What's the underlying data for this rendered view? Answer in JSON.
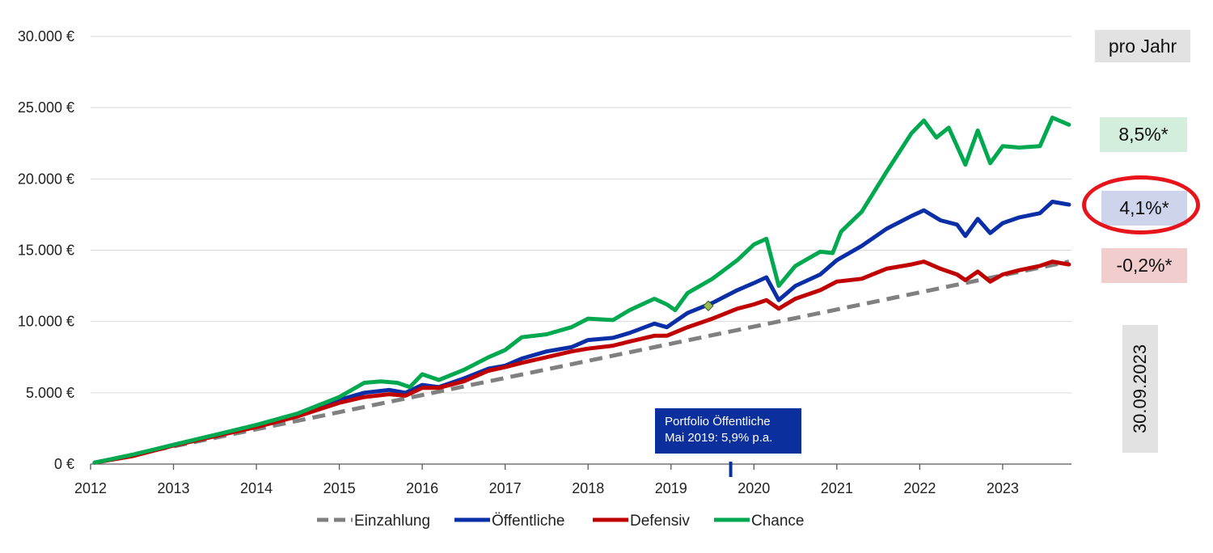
{
  "chart_data": {
    "type": "line",
    "title": "",
    "xlabel": "",
    "ylabel": "",
    "ylim": [
      0,
      30000
    ],
    "xlim": [
      2012,
      2023.83
    ],
    "y_ticks": [
      0,
      5000,
      10000,
      15000,
      20000,
      25000,
      30000
    ],
    "y_tick_labels": [
      "0 €",
      "5.000 €",
      "10.000 €",
      "15.000 €",
      "20.000 €",
      "25.000 €",
      "30.000 €"
    ],
    "x_ticks": [
      2012,
      2013,
      2014,
      2015,
      2016,
      2017,
      2018,
      2019,
      2020,
      2021,
      2022,
      2023
    ],
    "x_tick_labels": [
      "2012",
      "2013",
      "2014",
      "2015",
      "2016",
      "2017",
      "2018",
      "2019",
      "2020",
      "2021",
      "2022",
      "2023"
    ],
    "grid": "horizontal",
    "legend_position": "bottom",
    "series": [
      {
        "name": "Einzahlung",
        "color": "#808080",
        "style": "dashed",
        "points": [
          [
            2012.05,
            100
          ],
          [
            2023.8,
            14200
          ]
        ]
      },
      {
        "name": "Öffentliche",
        "color": "#0a2ea6",
        "style": "solid",
        "points": [
          [
            2012.05,
            100
          ],
          [
            2012.5,
            600
          ],
          [
            2013,
            1350
          ],
          [
            2013.5,
            2000
          ],
          [
            2014,
            2700
          ],
          [
            2014.5,
            3400
          ],
          [
            2015,
            4500
          ],
          [
            2015.3,
            5000
          ],
          [
            2015.6,
            5200
          ],
          [
            2015.8,
            5000
          ],
          [
            2016,
            5550
          ],
          [
            2016.2,
            5400
          ],
          [
            2016.5,
            6000
          ],
          [
            2016.8,
            6700
          ],
          [
            2017,
            6900
          ],
          [
            2017.2,
            7400
          ],
          [
            2017.5,
            7900
          ],
          [
            2017.8,
            8200
          ],
          [
            2018,
            8700
          ],
          [
            2018.3,
            8850
          ],
          [
            2018.5,
            9200
          ],
          [
            2018.8,
            9850
          ],
          [
            2018.95,
            9600
          ],
          [
            2019.2,
            10600
          ],
          [
            2019.5,
            11300
          ],
          [
            2019.8,
            12200
          ],
          [
            2020,
            12700
          ],
          [
            2020.15,
            13100
          ],
          [
            2020.3,
            11500
          ],
          [
            2020.5,
            12500
          ],
          [
            2020.8,
            13300
          ],
          [
            2021,
            14300
          ],
          [
            2021.3,
            15300
          ],
          [
            2021.6,
            16500
          ],
          [
            2021.9,
            17400
          ],
          [
            2022.05,
            17800
          ],
          [
            2022.25,
            17100
          ],
          [
            2022.45,
            16800
          ],
          [
            2022.55,
            16000
          ],
          [
            2022.7,
            17200
          ],
          [
            2022.85,
            16200
          ],
          [
            2023,
            16900
          ],
          [
            2023.2,
            17300
          ],
          [
            2023.45,
            17600
          ],
          [
            2023.6,
            18400
          ],
          [
            2023.8,
            18200
          ]
        ]
      },
      {
        "name": "Defensiv",
        "color": "#c00000",
        "style": "solid",
        "points": [
          [
            2012.05,
            100
          ],
          [
            2012.5,
            550
          ],
          [
            2013,
            1300
          ],
          [
            2013.5,
            1950
          ],
          [
            2014,
            2600
          ],
          [
            2014.5,
            3350
          ],
          [
            2015,
            4300
          ],
          [
            2015.3,
            4700
          ],
          [
            2015.6,
            4900
          ],
          [
            2015.8,
            4800
          ],
          [
            2016,
            5350
          ],
          [
            2016.2,
            5350
          ],
          [
            2016.5,
            5800
          ],
          [
            2016.8,
            6550
          ],
          [
            2017,
            6800
          ],
          [
            2017.2,
            7100
          ],
          [
            2017.5,
            7500
          ],
          [
            2017.8,
            7900
          ],
          [
            2018,
            8100
          ],
          [
            2018.3,
            8300
          ],
          [
            2018.5,
            8600
          ],
          [
            2018.8,
            9000
          ],
          [
            2018.95,
            9000
          ],
          [
            2019.2,
            9600
          ],
          [
            2019.5,
            10200
          ],
          [
            2019.8,
            10900
          ],
          [
            2020,
            11200
          ],
          [
            2020.15,
            11500
          ],
          [
            2020.3,
            10900
          ],
          [
            2020.5,
            11600
          ],
          [
            2020.8,
            12200
          ],
          [
            2021,
            12800
          ],
          [
            2021.3,
            13000
          ],
          [
            2021.6,
            13700
          ],
          [
            2021.9,
            14000
          ],
          [
            2022.05,
            14200
          ],
          [
            2022.25,
            13700
          ],
          [
            2022.45,
            13300
          ],
          [
            2022.55,
            12900
          ],
          [
            2022.7,
            13500
          ],
          [
            2022.85,
            12800
          ],
          [
            2023,
            13300
          ],
          [
            2023.2,
            13600
          ],
          [
            2023.45,
            13900
          ],
          [
            2023.6,
            14200
          ],
          [
            2023.8,
            14000
          ]
        ]
      },
      {
        "name": "Chance",
        "color": "#00a84f",
        "style": "solid",
        "points": [
          [
            2012.05,
            100
          ],
          [
            2012.5,
            650
          ],
          [
            2013,
            1350
          ],
          [
            2013.5,
            2050
          ],
          [
            2014,
            2750
          ],
          [
            2014.5,
            3550
          ],
          [
            2015,
            4700
          ],
          [
            2015.3,
            5700
          ],
          [
            2015.5,
            5800
          ],
          [
            2015.7,
            5700
          ],
          [
            2015.85,
            5400
          ],
          [
            2016,
            6300
          ],
          [
            2016.2,
            5900
          ],
          [
            2016.5,
            6600
          ],
          [
            2016.8,
            7500
          ],
          [
            2017,
            8000
          ],
          [
            2017.2,
            8900
          ],
          [
            2017.5,
            9100
          ],
          [
            2017.8,
            9600
          ],
          [
            2018,
            10200
          ],
          [
            2018.3,
            10100
          ],
          [
            2018.5,
            10800
          ],
          [
            2018.8,
            11600
          ],
          [
            2018.95,
            11200
          ],
          [
            2019.05,
            10800
          ],
          [
            2019.2,
            12000
          ],
          [
            2019.5,
            13000
          ],
          [
            2019.8,
            14300
          ],
          [
            2020,
            15400
          ],
          [
            2020.15,
            15800
          ],
          [
            2020.3,
            12500
          ],
          [
            2020.5,
            13900
          ],
          [
            2020.8,
            14900
          ],
          [
            2020.95,
            14800
          ],
          [
            2021.05,
            16300
          ],
          [
            2021.3,
            17700
          ],
          [
            2021.6,
            20500
          ],
          [
            2021.9,
            23200
          ],
          [
            2022.05,
            24100
          ],
          [
            2022.2,
            22900
          ],
          [
            2022.35,
            23600
          ],
          [
            2022.55,
            21000
          ],
          [
            2022.7,
            23400
          ],
          [
            2022.85,
            21100
          ],
          [
            2023,
            22300
          ],
          [
            2023.2,
            22200
          ],
          [
            2023.45,
            22300
          ],
          [
            2023.6,
            24300
          ],
          [
            2023.8,
            23800
          ]
        ]
      }
    ],
    "marker": {
      "x": 2019.45,
      "y": 11100,
      "color": "#9bbb59"
    },
    "annotation": {
      "line1": "Portfolio Öffentliche",
      "line2": "Mai 2019: 5,9% p.a.",
      "x": 2019.72,
      "color": "#0c2f9e"
    },
    "side_labels": {
      "header": "pro Jahr",
      "chance_rate": "8,5%*",
      "oeffentliche_rate": "4,1%*",
      "defensiv_rate": "-0,2%*",
      "chance_bg": "#d3eedd",
      "oeffentliche_bg": "#cdd4ec",
      "defensiv_bg": "#f2cdcd",
      "header_bg": "#e2e2e2",
      "ring_color": "#e8141c",
      "date": "30.09.2023"
    }
  }
}
